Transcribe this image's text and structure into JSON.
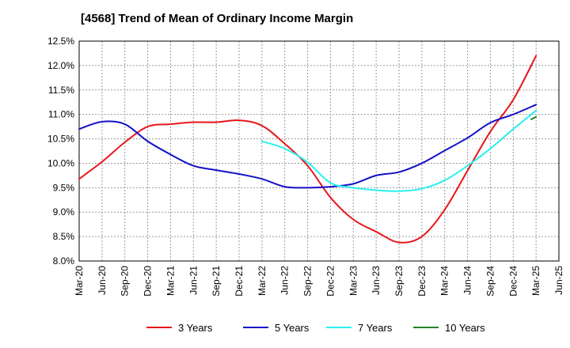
{
  "chart_data": {
    "type": "line",
    "title": "[4568]  Trend of Mean of Ordinary Income Margin",
    "xlabel": "",
    "ylabel": "",
    "y_unit": "%",
    "ylim": [
      8.0,
      12.5
    ],
    "y_ticks": [
      "8.0%",
      "8.5%",
      "9.0%",
      "9.5%",
      "10.0%",
      "10.5%",
      "11.0%",
      "11.5%",
      "12.0%",
      "12.5%"
    ],
    "x_ticks": [
      "Mar-20",
      "Jun-20",
      "Sep-20",
      "Dec-20",
      "Mar-21",
      "Jun-21",
      "Sep-21",
      "Dec-21",
      "Mar-22",
      "Jun-22",
      "Sep-22",
      "Dec-22",
      "Mar-23",
      "Jun-23",
      "Sep-23",
      "Dec-23",
      "Mar-24",
      "Jun-24",
      "Sep-24",
      "Dec-24",
      "Mar-25",
      "Jun-25"
    ],
    "grid": true,
    "legend_position": "bottom",
    "series": [
      {
        "name": "3 Years",
        "color": "#e8161b",
        "values": [
          9.68,
          10.03,
          10.43,
          10.75,
          10.8,
          10.84,
          10.84,
          10.88,
          10.77,
          10.4,
          9.95,
          9.3,
          8.85,
          8.6,
          8.38,
          8.5,
          9.05,
          9.85,
          10.65,
          11.3,
          12.2,
          null
        ]
      },
      {
        "name": "5 Years",
        "color": "#1410c8",
        "values": [
          10.7,
          10.85,
          10.8,
          10.45,
          10.18,
          9.95,
          9.86,
          9.78,
          9.68,
          9.52,
          9.5,
          9.52,
          9.58,
          9.75,
          9.82,
          10.0,
          10.26,
          10.52,
          10.83,
          11.0,
          11.2,
          null
        ]
      },
      {
        "name": "7 Years",
        "color": "#2af0f0",
        "values": [
          null,
          null,
          null,
          null,
          null,
          null,
          null,
          null,
          10.45,
          10.3,
          10.02,
          9.6,
          9.5,
          9.45,
          9.43,
          9.48,
          9.65,
          9.95,
          10.3,
          10.7,
          11.08,
          null
        ]
      },
      {
        "name": "10 Years",
        "color": "#268226",
        "values": [
          null,
          null,
          null,
          null,
          null,
          null,
          null,
          null,
          null,
          null,
          null,
          null,
          null,
          null,
          null,
          null,
          null,
          null,
          null,
          null,
          10.95,
          null
        ]
      }
    ]
  }
}
